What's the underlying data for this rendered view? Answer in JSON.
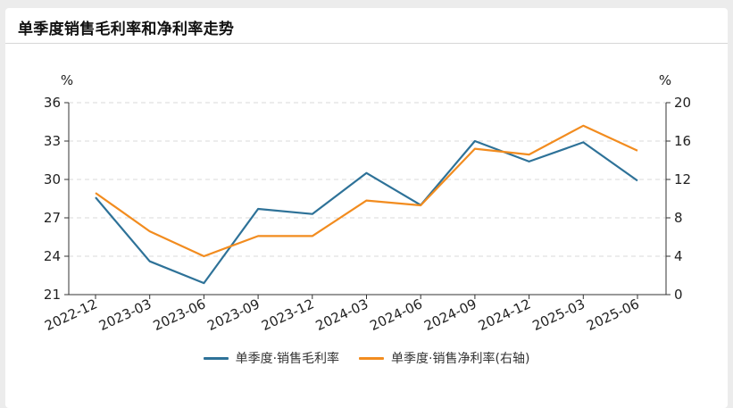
{
  "title": "单季度销售毛利率和净利率走势",
  "chart_data": {
    "type": "line",
    "categories": [
      "2022-12",
      "2023-03",
      "2023-06",
      "2023-09",
      "2023-12",
      "2024-03",
      "2024-06",
      "2024-09",
      "2024-12",
      "2025-03",
      "2025-06"
    ],
    "series": [
      {
        "name": "单季度·销售毛利率",
        "axis": "left",
        "color": "#2e7298",
        "values": [
          28.6,
          23.6,
          21.9,
          27.7,
          27.3,
          30.5,
          28.0,
          33.0,
          31.4,
          32.9,
          29.9
        ]
      },
      {
        "name": "单季度·销售净利率(右轴)",
        "axis": "right",
        "color": "#f28c1f",
        "values": [
          10.6,
          6.6,
          4.0,
          6.1,
          6.1,
          9.8,
          9.3,
          15.2,
          14.6,
          17.6,
          15.0
        ]
      }
    ],
    "y_left": {
      "label": "%",
      "ylim": [
        21,
        36
      ],
      "ticks": [
        21,
        24,
        27,
        30,
        33,
        36
      ]
    },
    "y_right": {
      "label": "%",
      "ylim": [
        0,
        20
      ],
      "ticks": [
        0,
        4,
        8,
        12,
        16,
        20
      ]
    },
    "grid": true,
    "legend": "bottom-center"
  }
}
